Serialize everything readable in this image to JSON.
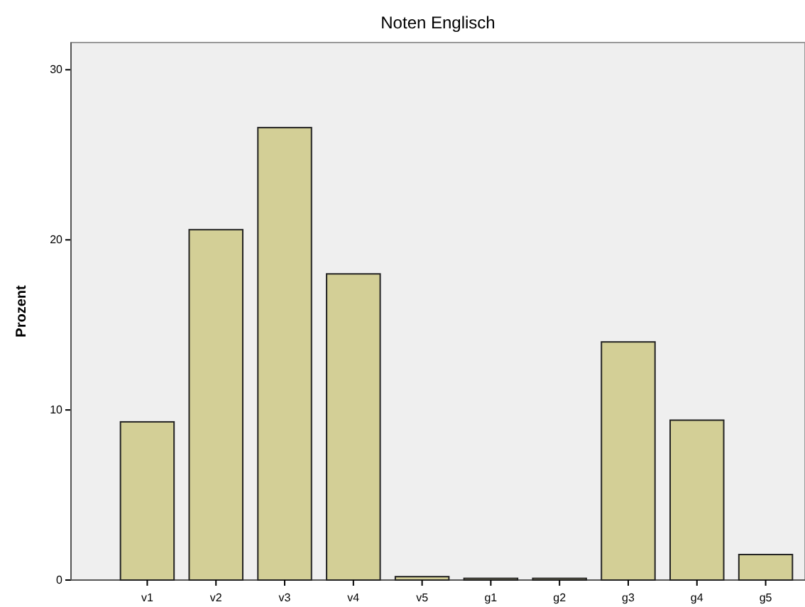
{
  "chart_data": {
    "type": "bar",
    "title": "Noten Englisch",
    "ylabel": "Prozent",
    "categories": [
      "v1",
      "v2",
      "v3",
      "v4",
      "v5",
      "g1",
      "g2",
      "g3",
      "g4",
      "g5"
    ],
    "values": [
      9.3,
      20.6,
      26.6,
      18.0,
      0.2,
      0.1,
      0.1,
      14.0,
      9.4,
      1.5
    ],
    "color": "#d3cf96",
    "ylim": [
      0,
      31.6
    ],
    "yticks": [
      0,
      10,
      20,
      30
    ],
    "grid": false
  }
}
